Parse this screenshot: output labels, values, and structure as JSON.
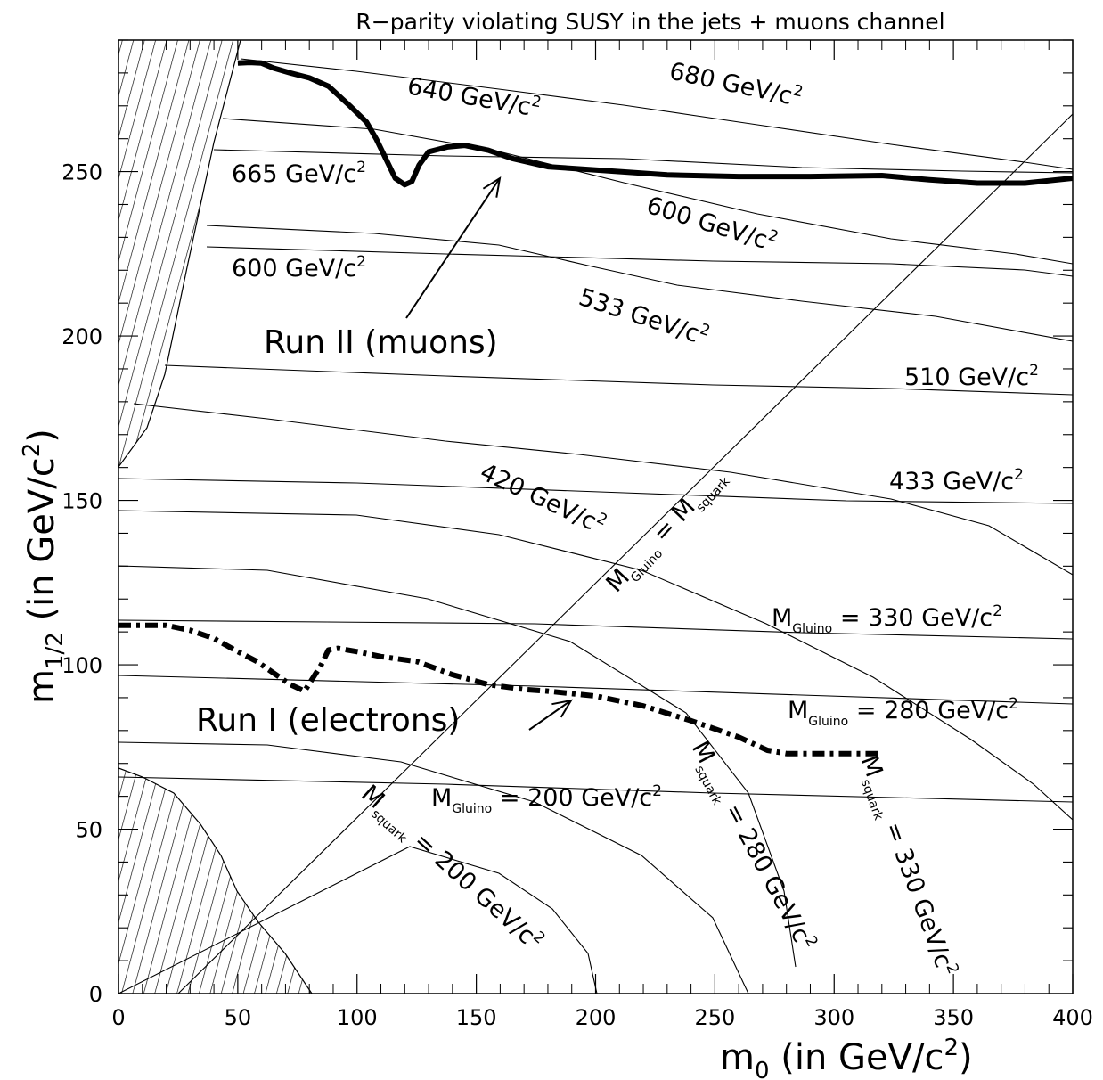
{
  "chart_data": {
    "type": "line",
    "title": "R−parity violating SUSY in the jets + muons channel",
    "xlabel": {
      "base": "m",
      "sub": "0",
      "rest": " (in GeV/c",
      "sup": "2",
      "end": ")"
    },
    "ylabel": {
      "base": "m",
      "sub": "1/2",
      "rest": " (in GeV/c",
      "sup": "2",
      "end": ")"
    },
    "xlim": [
      0,
      400
    ],
    "ylim": [
      0,
      290
    ],
    "xticks": [
      0,
      50,
      100,
      150,
      200,
      250,
      300,
      350,
      400
    ],
    "yticks": [
      0,
      50,
      100,
      150,
      200,
      250
    ],
    "limit_curves": [
      {
        "name": "Run II (muons)",
        "style": "thick-solid",
        "points": [
          [
            50,
            283
          ],
          [
            55,
            283.2
          ],
          [
            60,
            283
          ],
          [
            65,
            281.5
          ],
          [
            72,
            280
          ],
          [
            80,
            278.5
          ],
          [
            88,
            276
          ],
          [
            97,
            270
          ],
          [
            104,
            265
          ],
          [
            108,
            260
          ],
          [
            112,
            254
          ],
          [
            116,
            248
          ],
          [
            120,
            246
          ],
          [
            123,
            247
          ],
          [
            126,
            252
          ],
          [
            130,
            256
          ],
          [
            138,
            257.5
          ],
          [
            145,
            258
          ],
          [
            155,
            256.5
          ],
          [
            165,
            254
          ],
          [
            180,
            251.5
          ],
          [
            200,
            250.5
          ],
          [
            230,
            249
          ],
          [
            260,
            248.5
          ],
          [
            290,
            248.5
          ],
          [
            320,
            248.8
          ],
          [
            340,
            247.5
          ],
          [
            360,
            246.5
          ],
          [
            380,
            246.5
          ],
          [
            400,
            248
          ]
        ]
      },
      {
        "name": "Run I (electrons)",
        "style": "thick-dashdot",
        "points": [
          [
            0,
            112
          ],
          [
            20,
            112
          ],
          [
            30,
            110.5
          ],
          [
            40,
            108
          ],
          [
            50,
            104
          ],
          [
            58,
            101
          ],
          [
            66,
            97
          ],
          [
            72,
            94
          ],
          [
            78,
            92
          ],
          [
            85,
            100
          ],
          [
            88,
            104.5
          ],
          [
            92,
            105
          ],
          [
            100,
            104
          ],
          [
            110,
            102.5
          ],
          [
            125,
            101
          ],
          [
            140,
            97
          ],
          [
            155,
            94
          ],
          [
            170,
            92.5
          ],
          [
            180,
            92
          ],
          [
            200,
            90.5
          ],
          [
            220,
            87.5
          ],
          [
            240,
            83
          ],
          [
            260,
            78
          ],
          [
            272,
            74
          ],
          [
            280,
            73
          ],
          [
            300,
            73
          ],
          [
            320,
            73
          ]
        ]
      }
    ],
    "labels": {
      "run2": "Run II (muons)",
      "run1": "Run I (electrons)",
      "eq": "=",
      "gev": "GeV/c",
      "sup2": "2",
      "mGluinoBase": "M",
      "mGluinoSub": "Gluino",
      "mSquarkBase": "M",
      "mSquarkSub": "squark",
      "mSquarkSubAlt": "sqaurk",
      "diagonal_rhs_base": "M",
      "diagonal_rhs_sub": "squark"
    },
    "contour_values": {
      "gluino": [
        "200",
        "280",
        "330"
      ],
      "squark": [
        "200",
        "280",
        "330"
      ],
      "contours": [
        "680",
        "640",
        "665",
        "600",
        "600",
        "533",
        "510",
        "433",
        "420"
      ]
    },
    "excluded_regions": 2
  }
}
